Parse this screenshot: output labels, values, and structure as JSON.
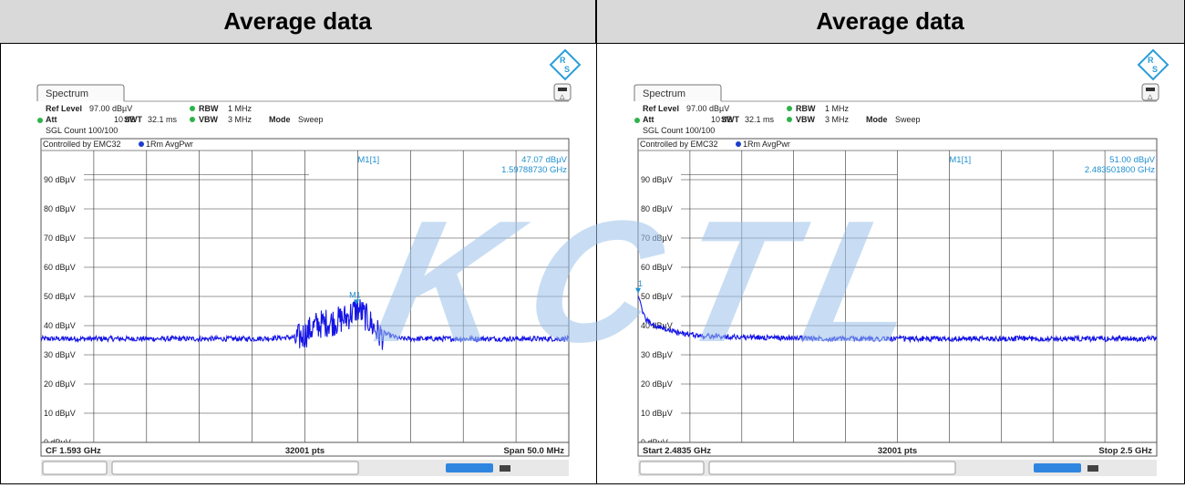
{
  "colors": {
    "trace": "#1414e6",
    "marker": "#1e8fd0",
    "watermark": "#9cc3ea"
  },
  "watermark_text": "KCTL",
  "panels": [
    {
      "header": "Average data",
      "tab": "Spectrum",
      "ref_level_label": "Ref Level",
      "ref_level": "97.00 dBµV",
      "att_label": "Att",
      "att": "10 dB",
      "swt_label": "SWT",
      "swt": "32.1 ms",
      "rbw_label": "RBW",
      "rbw": "1 MHz",
      "vbw_label": "VBW",
      "vbw": "3 MHz",
      "mode_label": "Mode",
      "mode": "Sweep",
      "sgl_count": "SGL Count 100/100",
      "controlled_by": "Controlled by EMC32",
      "trace_label": "1Rm AvgPwr",
      "marker_name": "M1[1]",
      "marker_level": "47.07 dBµV",
      "marker_freq": "1.59788730 GHz",
      "marker_tag": "M1",
      "footer_left": "CF 1.593 GHz",
      "footer_mid": "32001 pts",
      "footer_right": "Span 50.0 MHz",
      "icons": [
        "rs-logo-icon",
        "battery-icon"
      ]
    },
    {
      "header": "Average data",
      "tab": "Spectrum",
      "ref_level_label": "Ref Level",
      "ref_level": "97.00 dBµV",
      "att_label": "Att",
      "att": "10 dB",
      "swt_label": "SWT",
      "swt": "32.1 ms",
      "rbw_label": "RBW",
      "rbw": "1 MHz",
      "vbw_label": "VBW",
      "vbw": "3 MHz",
      "mode_label": "Mode",
      "mode": "Sweep",
      "sgl_count": "SGL Count 100/100",
      "controlled_by": "Controlled by EMC32",
      "trace_label": "1Rm AvgPwr",
      "marker_name": "M1[1]",
      "marker_level": "51.00 dBµV",
      "marker_freq": "2.483501800 GHz",
      "marker_tag": "1",
      "footer_left": "Start 2.4835 GHz",
      "footer_mid": "32001 pts",
      "footer_right": "Stop 2.5 GHz",
      "icons": [
        "rs-logo-icon",
        "battery-icon"
      ]
    }
  ],
  "chart_data": [
    {
      "type": "line",
      "xlabel": "",
      "ylabel": "",
      "x_range_mhz": [
        1568,
        1618
      ],
      "ylim": [
        0,
        100
      ],
      "y_ticks": [
        "90 dBµV",
        "80 dBµV",
        "70 dBµV",
        "60 dBµV",
        "50 dBµV",
        "40 dBµV",
        "30 dBµV",
        "20 dBµV",
        "10 dBµV",
        "0 dBµV"
      ],
      "y_tick_values": [
        90,
        80,
        70,
        60,
        50,
        40,
        30,
        20,
        10,
        0
      ],
      "grid": true,
      "series": [
        {
          "x": [
            1568,
            1578,
            1588,
            1592,
            1593,
            1594,
            1595,
            1596,
            1597,
            1598,
            1599,
            1600,
            1602,
            1608,
            1618
          ],
          "values": [
            35.5,
            35.5,
            35.5,
            36,
            38,
            41,
            42,
            42.5,
            44,
            47,
            43,
            38,
            35.5,
            35.5,
            35.5
          ]
        }
      ],
      "marker": {
        "x": 1597.8873,
        "y": 47.07
      }
    },
    {
      "type": "line",
      "xlabel": "",
      "ylabel": "",
      "x_range_mhz": [
        2483.5,
        2500
      ],
      "ylim": [
        0,
        100
      ],
      "y_ticks": [
        "90 dBµV",
        "80 dBµV",
        "70 dBµV",
        "60 dBµV",
        "50 dBµV",
        "40 dBµV",
        "30 dBµV",
        "20 dBµV",
        "10 dBµV",
        "0 dBµV"
      ],
      "y_tick_values": [
        90,
        80,
        70,
        60,
        50,
        40,
        30,
        20,
        10,
        0
      ],
      "grid": true,
      "series": [
        {
          "x": [
            2483.5,
            2483.6,
            2483.75,
            2484.0,
            2484.3,
            2484.8,
            2485.5,
            2487,
            2490,
            2495,
            2500
          ],
          "values": [
            51,
            46,
            42,
            40,
            39,
            37.5,
            36.5,
            36,
            35.5,
            35.5,
            35.5
          ]
        }
      ],
      "marker": {
        "x": 2483.5018,
        "y": 51.0
      }
    }
  ]
}
